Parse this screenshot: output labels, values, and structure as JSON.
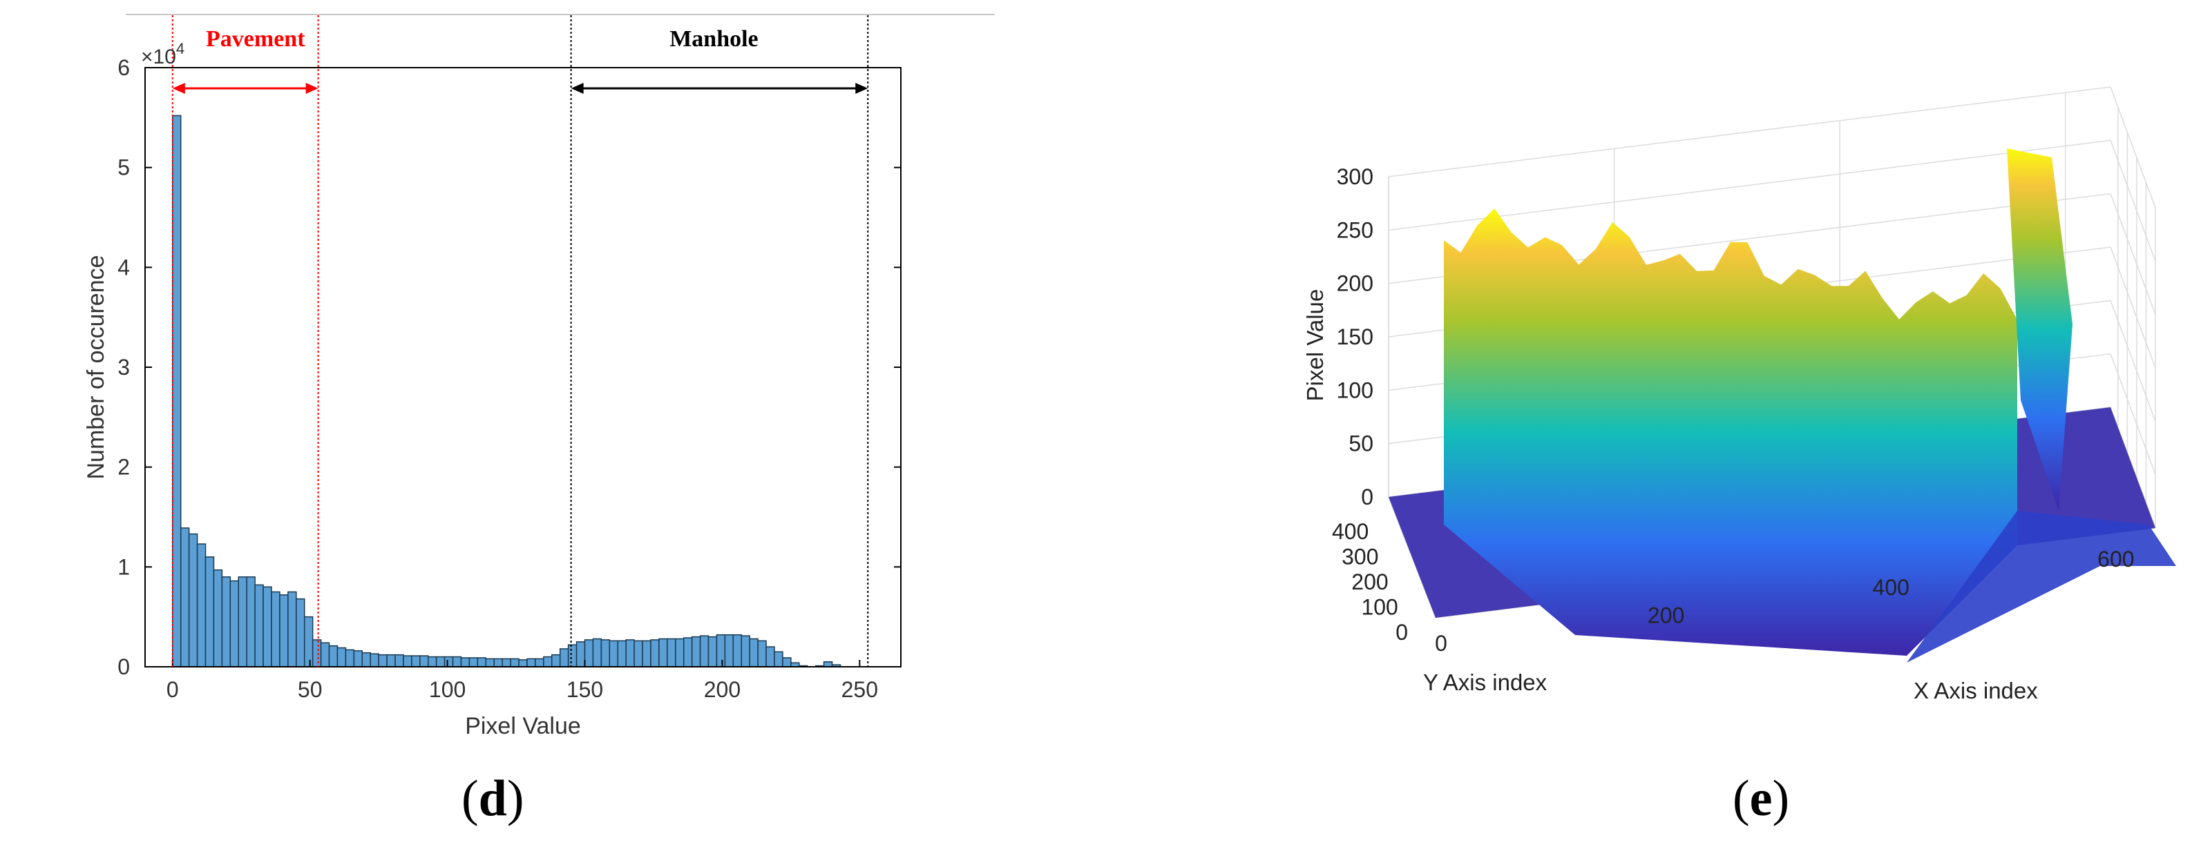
{
  "panels": {
    "d": "d",
    "e": "e"
  },
  "colors": {
    "bar_fill": "#5b9fd4",
    "bar_edge": "#1b3a52",
    "pavement": "#ff0000",
    "manhole": "#000000",
    "axis": "#000000",
    "surface_low": "#3e26a8",
    "surface_mid": "#13bdb8",
    "surface_high": "#f9fb0e"
  },
  "chart_data": [
    {
      "type": "bar",
      "panel": "d",
      "xlabel": "Pixel Value",
      "ylabel": "Number of occurence",
      "y_multiplier": "×10",
      "y_multiplier_exp": "4",
      "xlim": [
        -10,
        265
      ],
      "ylim": [
        0,
        6
      ],
      "xticks": [
        "0",
        "50",
        "100",
        "150",
        "200",
        "250"
      ],
      "yticks": [
        "0",
        "1",
        "2",
        "3",
        "4",
        "5",
        "6"
      ],
      "bin_width": 3,
      "bin_start": 0,
      "values_x1e4": [
        5.52,
        1.39,
        1.33,
        1.23,
        1.1,
        0.97,
        0.9,
        0.86,
        0.9,
        0.9,
        0.82,
        0.8,
        0.75,
        0.72,
        0.75,
        0.68,
        0.5,
        0.27,
        0.24,
        0.21,
        0.19,
        0.17,
        0.16,
        0.14,
        0.13,
        0.12,
        0.12,
        0.12,
        0.11,
        0.11,
        0.11,
        0.1,
        0.1,
        0.1,
        0.1,
        0.09,
        0.09,
        0.09,
        0.08,
        0.08,
        0.08,
        0.08,
        0.07,
        0.08,
        0.08,
        0.1,
        0.12,
        0.18,
        0.22,
        0.25,
        0.27,
        0.28,
        0.27,
        0.26,
        0.26,
        0.27,
        0.26,
        0.26,
        0.27,
        0.28,
        0.28,
        0.28,
        0.29,
        0.3,
        0.31,
        0.3,
        0.32,
        0.32,
        0.32,
        0.31,
        0.28,
        0.26,
        0.2,
        0.15,
        0.09,
        0.04,
        0.01,
        0.0,
        0.01,
        0.05,
        0.02
      ],
      "annotations": [
        {
          "text": "Pavement",
          "from": 0,
          "to": 53,
          "color": "#ff0000"
        },
        {
          "text": "Manhole",
          "from": 145,
          "to": 253,
          "color": "#000000"
        }
      ]
    },
    {
      "type": "surface",
      "panel": "e",
      "zlabel": "Pixel Value",
      "xlabel": "X Axis index",
      "ylabel": "Y Axis index",
      "zticks": [
        "0",
        "50",
        "100",
        "150",
        "200",
        "250",
        "300"
      ],
      "xticks": [
        "0",
        "200",
        "400",
        "600"
      ],
      "yticks": [
        "0",
        "100",
        "200",
        "300",
        "400"
      ],
      "zlim": [
        0,
        300
      ],
      "xlim": [
        0,
        640
      ],
      "ylim": [
        0,
        480
      ]
    }
  ]
}
